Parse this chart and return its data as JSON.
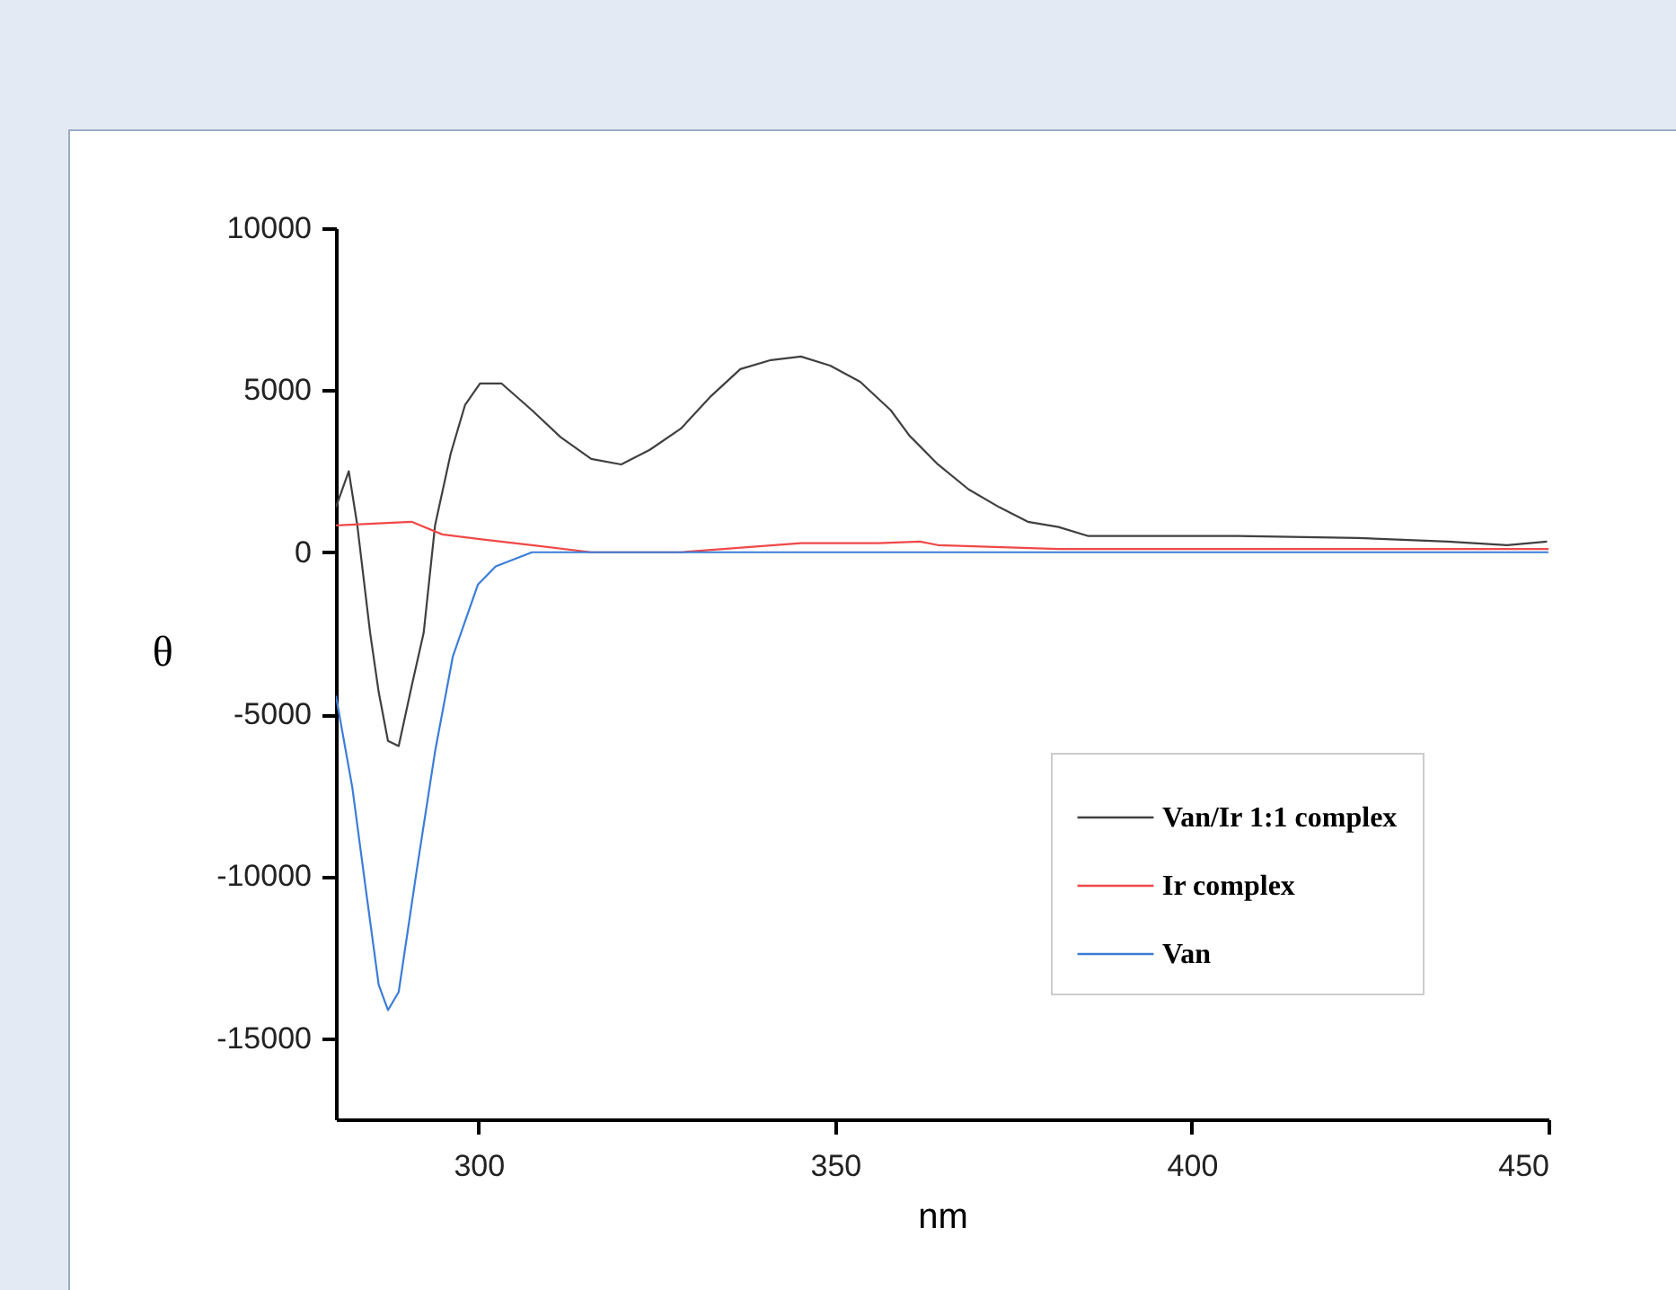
{
  "chart_data": {
    "type": "line",
    "xlabel": "nm",
    "ylabel": "θ",
    "xlim": [
      280,
      450
    ],
    "xticks": [
      300,
      350,
      400,
      450
    ],
    "ylim": [
      -17500,
      10000
    ],
    "yticks": [
      -15000,
      -10000,
      -5000,
      0,
      5000,
      10000
    ],
    "grid": false,
    "legend": "bottom right",
    "marker": "none",
    "line_style": "solid",
    "series": [
      {
        "name": "Van/Ir 1:1 complex",
        "color": "#404040",
        "x": [
          280,
          281.8,
          283,
          284.8,
          286,
          287.3,
          288.8,
          290.6,
          292.3,
          293.9,
          296.1,
          298.1,
          300.2,
          303.2,
          307.5,
          311.5,
          315.8,
          320,
          324,
          328.4,
          332.6,
          336.7,
          341,
          345.2,
          349.3,
          353.5,
          357.8,
          360.4,
          364.4,
          368.7,
          373,
          377,
          381.3,
          385.5,
          393.9,
          406.4,
          423.3,
          435.9,
          444.2,
          449.8
        ],
        "values": [
          1390,
          2500,
          830,
          -2490,
          -4320,
          -5820,
          -5980,
          -4150,
          -2490,
          830,
          3050,
          4540,
          5210,
          5210,
          4380,
          3550,
          2880,
          2710,
          3160,
          3820,
          4820,
          5650,
          5930,
          6040,
          5760,
          5260,
          4380,
          3600,
          2710,
          1940,
          1390,
          940,
          780,
          500,
          500,
          500,
          440,
          330,
          220,
          330
        ]
      },
      {
        "name": "Ir complex",
        "color": "#f04848",
        "x": [
          280,
          290.6,
          294.9,
          300.7,
          307.5,
          315.8,
          328.4,
          345.2,
          356,
          361.9,
          364.4,
          381.3,
          400,
          420,
          450
        ],
        "values": [
          830,
          940,
          550,
          390,
          220,
          0,
          0,
          280,
          280,
          330,
          220,
          100,
          100,
          100,
          100
        ]
      },
      {
        "name": "Van",
        "color": "#3b7dd8",
        "x": [
          280,
          282.3,
          284.3,
          286,
          287.3,
          288.8,
          291.3,
          293.9,
          296.4,
          299.9,
          302.4,
          307.5,
          315.8,
          350,
          400,
          450
        ],
        "values": [
          -4430,
          -7260,
          -10580,
          -13350,
          -14130,
          -13570,
          -9860,
          -6150,
          -3210,
          -1000,
          -440,
          0,
          0,
          0,
          0,
          0
        ]
      }
    ]
  }
}
